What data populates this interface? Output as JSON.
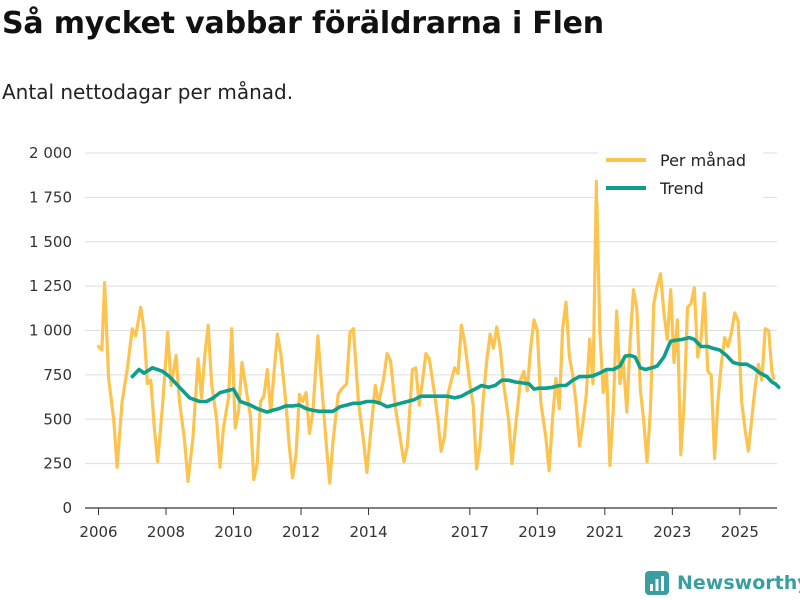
{
  "header": {
    "title": "Så mycket vabbar föräldrarna i Flen",
    "subtitle": "Antal nettodagar per månad."
  },
  "brand": {
    "name": "Newsworthy",
    "icon": "chart-logo-icon"
  },
  "colors": {
    "per_month": "#fcc44f",
    "trend": "#0e9e8e",
    "grid": "#dddddd",
    "axis": "#333333",
    "brand": "#3a9ea0"
  },
  "chart_data": {
    "type": "line",
    "title": "Så mycket vabbar föräldrarna i Flen",
    "subtitle": "Antal nettodagar per månad.",
    "xlabel": "",
    "ylabel": "",
    "xlim": [
      2005.6,
      2026.1
    ],
    "ylim": [
      0,
      2000
    ],
    "yticks": [
      {
        "value": 0,
        "label": "0"
      },
      {
        "value": 250,
        "label": "250"
      },
      {
        "value": 500,
        "label": "500"
      },
      {
        "value": 750,
        "label": "750"
      },
      {
        "value": 1000,
        "label": "1 000"
      },
      {
        "value": 1250,
        "label": "1 250"
      },
      {
        "value": 1500,
        "label": "1 500"
      },
      {
        "value": 1750,
        "label": "1 750"
      },
      {
        "value": 2000,
        "label": "2 000"
      }
    ],
    "xticks": [
      {
        "value": 2006,
        "label": "2006"
      },
      {
        "value": 2008,
        "label": "2008"
      },
      {
        "value": 2010,
        "label": "2010"
      },
      {
        "value": 2012,
        "label": "2012"
      },
      {
        "value": 2014,
        "label": "2014"
      },
      {
        "value": 2017,
        "label": "2017"
      },
      {
        "value": 2019,
        "label": "2019"
      },
      {
        "value": 2021,
        "label": "2021"
      },
      {
        "value": 2023,
        "label": "2023"
      },
      {
        "value": 2025,
        "label": "2025"
      }
    ],
    "legend": {
      "position": "top-right",
      "entries": [
        "Per månad",
        "Trend"
      ]
    },
    "series": [
      {
        "name": "Per månad",
        "color": "#fcc44f",
        "points": [
          [
            2006.0,
            910
          ],
          [
            2006.1,
            890
          ],
          [
            2006.18,
            1270
          ],
          [
            2006.3,
            730
          ],
          [
            2006.45,
            500
          ],
          [
            2006.55,
            230
          ],
          [
            2006.7,
            600
          ],
          [
            2006.85,
            780
          ],
          [
            2007.0,
            1010
          ],
          [
            2007.1,
            970
          ],
          [
            2007.25,
            1130
          ],
          [
            2007.35,
            1000
          ],
          [
            2007.45,
            700
          ],
          [
            2007.55,
            720
          ],
          [
            2007.65,
            460
          ],
          [
            2007.75,
            260
          ],
          [
            2007.9,
            580
          ],
          [
            2008.05,
            990
          ],
          [
            2008.15,
            690
          ],
          [
            2008.3,
            860
          ],
          [
            2008.4,
            600
          ],
          [
            2008.55,
            380
          ],
          [
            2008.65,
            150
          ],
          [
            2008.8,
            400
          ],
          [
            2008.95,
            840
          ],
          [
            2009.05,
            620
          ],
          [
            2009.15,
            860
          ],
          [
            2009.25,
            1030
          ],
          [
            2009.35,
            700
          ],
          [
            2009.5,
            500
          ],
          [
            2009.6,
            230
          ],
          [
            2009.7,
            450
          ],
          [
            2009.85,
            620
          ],
          [
            2009.95,
            1010
          ],
          [
            2010.05,
            450
          ],
          [
            2010.15,
            550
          ],
          [
            2010.25,
            820
          ],
          [
            2010.4,
            640
          ],
          [
            2010.5,
            520
          ],
          [
            2010.6,
            160
          ],
          [
            2010.7,
            250
          ],
          [
            2010.8,
            600
          ],
          [
            2010.9,
            630
          ],
          [
            2011.0,
            780
          ],
          [
            2011.1,
            540
          ],
          [
            2011.2,
            760
          ],
          [
            2011.3,
            980
          ],
          [
            2011.4,
            870
          ],
          [
            2011.55,
            600
          ],
          [
            2011.65,
            350
          ],
          [
            2011.75,
            170
          ],
          [
            2011.85,
            300
          ],
          [
            2011.95,
            640
          ],
          [
            2012.05,
            600
          ],
          [
            2012.15,
            650
          ],
          [
            2012.25,
            420
          ],
          [
            2012.35,
            540
          ],
          [
            2012.5,
            970
          ],
          [
            2012.6,
            720
          ],
          [
            2012.75,
            350
          ],
          [
            2012.85,
            140
          ],
          [
            2012.95,
            380
          ],
          [
            2013.1,
            640
          ],
          [
            2013.2,
            670
          ],
          [
            2013.35,
            700
          ],
          [
            2013.45,
            990
          ],
          [
            2013.55,
            1010
          ],
          [
            2013.7,
            600
          ],
          [
            2013.85,
            380
          ],
          [
            2013.95,
            200
          ],
          [
            2014.05,
            400
          ],
          [
            2014.2,
            690
          ],
          [
            2014.3,
            590
          ],
          [
            2014.45,
            730
          ],
          [
            2014.55,
            870
          ],
          [
            2014.65,
            830
          ],
          [
            2014.8,
            560
          ],
          [
            2014.95,
            380
          ],
          [
            2015.05,
            260
          ],
          [
            2015.15,
            350
          ],
          [
            2015.3,
            780
          ],
          [
            2015.4,
            790
          ],
          [
            2015.5,
            580
          ],
          [
            2015.6,
            720
          ],
          [
            2015.7,
            870
          ],
          [
            2015.8,
            840
          ],
          [
            2015.95,
            650
          ],
          [
            2016.05,
            500
          ],
          [
            2016.15,
            320
          ],
          [
            2016.25,
            400
          ],
          [
            2016.35,
            640
          ],
          [
            2016.45,
            720
          ],
          [
            2016.55,
            790
          ],
          [
            2016.65,
            760
          ],
          [
            2016.75,
            1030
          ],
          [
            2016.85,
            930
          ],
          [
            2017.0,
            700
          ],
          [
            2017.1,
            580
          ],
          [
            2017.2,
            220
          ],
          [
            2017.3,
            350
          ],
          [
            2017.4,
            620
          ],
          [
            2017.5,
            830
          ],
          [
            2017.6,
            980
          ],
          [
            2017.7,
            900
          ],
          [
            2017.8,
            1020
          ],
          [
            2017.9,
            900
          ],
          [
            2018.0,
            700
          ],
          [
            2018.15,
            500
          ],
          [
            2018.25,
            250
          ],
          [
            2018.35,
            450
          ],
          [
            2018.5,
            720
          ],
          [
            2018.6,
            770
          ],
          [
            2018.7,
            660
          ],
          [
            2018.8,
            900
          ],
          [
            2018.9,
            1060
          ],
          [
            2019.0,
            1000
          ],
          [
            2019.1,
            600
          ],
          [
            2019.25,
            400
          ],
          [
            2019.35,
            210
          ],
          [
            2019.45,
            500
          ],
          [
            2019.55,
            730
          ],
          [
            2019.65,
            560
          ],
          [
            2019.75,
            1010
          ],
          [
            2019.85,
            1160
          ],
          [
            2019.95,
            850
          ],
          [
            2020.05,
            750
          ],
          [
            2020.15,
            580
          ],
          [
            2020.25,
            350
          ],
          [
            2020.35,
            480
          ],
          [
            2020.45,
            640
          ],
          [
            2020.55,
            950
          ],
          [
            2020.65,
            700
          ],
          [
            2020.75,
            1840
          ],
          [
            2020.85,
            1000
          ],
          [
            2020.95,
            650
          ],
          [
            2021.05,
            780
          ],
          [
            2021.15,
            240
          ],
          [
            2021.25,
            560
          ],
          [
            2021.35,
            1110
          ],
          [
            2021.45,
            700
          ],
          [
            2021.55,
            820
          ],
          [
            2021.65,
            540
          ],
          [
            2021.75,
            950
          ],
          [
            2021.85,
            1230
          ],
          [
            2021.95,
            1120
          ],
          [
            2022.05,
            670
          ],
          [
            2022.15,
            490
          ],
          [
            2022.25,
            260
          ],
          [
            2022.35,
            550
          ],
          [
            2022.45,
            1150
          ],
          [
            2022.55,
            1250
          ],
          [
            2022.65,
            1320
          ],
          [
            2022.75,
            1100
          ],
          [
            2022.85,
            950
          ],
          [
            2022.95,
            1230
          ],
          [
            2023.05,
            820
          ],
          [
            2023.15,
            1060
          ],
          [
            2023.25,
            300
          ],
          [
            2023.35,
            600
          ],
          [
            2023.45,
            1130
          ],
          [
            2023.55,
            1150
          ],
          [
            2023.65,
            1240
          ],
          [
            2023.75,
            850
          ],
          [
            2023.85,
            950
          ],
          [
            2023.95,
            1210
          ],
          [
            2024.05,
            770
          ],
          [
            2024.15,
            750
          ],
          [
            2024.25,
            280
          ],
          [
            2024.35,
            600
          ],
          [
            2024.45,
            810
          ],
          [
            2024.55,
            960
          ],
          [
            2024.65,
            910
          ],
          [
            2024.75,
            990
          ],
          [
            2024.85,
            1100
          ],
          [
            2024.95,
            1050
          ],
          [
            2025.05,
            600
          ],
          [
            2025.15,
            450
          ],
          [
            2025.25,
            320
          ],
          [
            2025.35,
            500
          ],
          [
            2025.45,
            680
          ],
          [
            2025.55,
            810
          ],
          [
            2025.65,
            720
          ],
          [
            2025.75,
            1010
          ],
          [
            2025.85,
            1000
          ],
          [
            2025.95,
            770
          ],
          [
            2026.0,
            730
          ]
        ]
      },
      {
        "name": "Trend",
        "color": "#0e9e8e",
        "points": [
          [
            2007.0,
            740
          ],
          [
            2007.2,
            780
          ],
          [
            2007.35,
            760
          ],
          [
            2007.6,
            790
          ],
          [
            2007.9,
            770
          ],
          [
            2008.1,
            740
          ],
          [
            2008.4,
            680
          ],
          [
            2008.7,
            620
          ],
          [
            2009.0,
            600
          ],
          [
            2009.2,
            600
          ],
          [
            2009.4,
            620
          ],
          [
            2009.6,
            650
          ],
          [
            2009.8,
            660
          ],
          [
            2010.0,
            670
          ],
          [
            2010.2,
            600
          ],
          [
            2010.5,
            580
          ],
          [
            2010.7,
            560
          ],
          [
            2010.85,
            550
          ],
          [
            2011.0,
            540
          ],
          [
            2011.15,
            550
          ],
          [
            2011.35,
            560
          ],
          [
            2011.55,
            575
          ],
          [
            2011.75,
            575
          ],
          [
            2011.95,
            580
          ],
          [
            2012.15,
            560
          ],
          [
            2012.35,
            550
          ],
          [
            2012.55,
            545
          ],
          [
            2012.75,
            545
          ],
          [
            2012.95,
            545
          ],
          [
            2013.15,
            570
          ],
          [
            2013.35,
            580
          ],
          [
            2013.55,
            590
          ],
          [
            2013.75,
            590
          ],
          [
            2013.95,
            600
          ],
          [
            2014.15,
            600
          ],
          [
            2014.35,
            590
          ],
          [
            2014.55,
            570
          ],
          [
            2014.75,
            580
          ],
          [
            2014.95,
            590
          ],
          [
            2015.15,
            600
          ],
          [
            2015.35,
            610
          ],
          [
            2015.55,
            630
          ],
          [
            2015.75,
            630
          ],
          [
            2015.95,
            630
          ],
          [
            2016.15,
            630
          ],
          [
            2016.35,
            630
          ],
          [
            2016.55,
            620
          ],
          [
            2016.75,
            630
          ],
          [
            2016.95,
            650
          ],
          [
            2017.15,
            670
          ],
          [
            2017.35,
            690
          ],
          [
            2017.55,
            680
          ],
          [
            2017.75,
            690
          ],
          [
            2017.95,
            720
          ],
          [
            2018.15,
            720
          ],
          [
            2018.35,
            710
          ],
          [
            2018.55,
            705
          ],
          [
            2018.75,
            700
          ],
          [
            2018.9,
            670
          ],
          [
            2019.05,
            675
          ],
          [
            2019.25,
            675
          ],
          [
            2019.45,
            680
          ],
          [
            2019.65,
            690
          ],
          [
            2019.85,
            690
          ],
          [
            2020.05,
            720
          ],
          [
            2020.25,
            740
          ],
          [
            2020.45,
            740
          ],
          [
            2020.65,
            745
          ],
          [
            2020.85,
            760
          ],
          [
            2021.05,
            780
          ],
          [
            2021.25,
            780
          ],
          [
            2021.45,
            800
          ],
          [
            2021.6,
            855
          ],
          [
            2021.75,
            860
          ],
          [
            2021.9,
            850
          ],
          [
            2022.05,
            790
          ],
          [
            2022.2,
            780
          ],
          [
            2022.4,
            790
          ],
          [
            2022.55,
            800
          ],
          [
            2022.75,
            850
          ],
          [
            2022.95,
            940
          ],
          [
            2023.1,
            945
          ],
          [
            2023.3,
            950
          ],
          [
            2023.5,
            960
          ],
          [
            2023.65,
            950
          ],
          [
            2023.85,
            910
          ],
          [
            2024.05,
            910
          ],
          [
            2024.2,
            900
          ],
          [
            2024.4,
            890
          ],
          [
            2024.6,
            860
          ],
          [
            2024.8,
            820
          ],
          [
            2025.0,
            810
          ],
          [
            2025.2,
            810
          ],
          [
            2025.4,
            790
          ],
          [
            2025.6,
            760
          ],
          [
            2025.8,
            740
          ],
          [
            2025.95,
            710
          ],
          [
            2026.05,
            700
          ],
          [
            2026.15,
            680
          ]
        ]
      }
    ]
  }
}
